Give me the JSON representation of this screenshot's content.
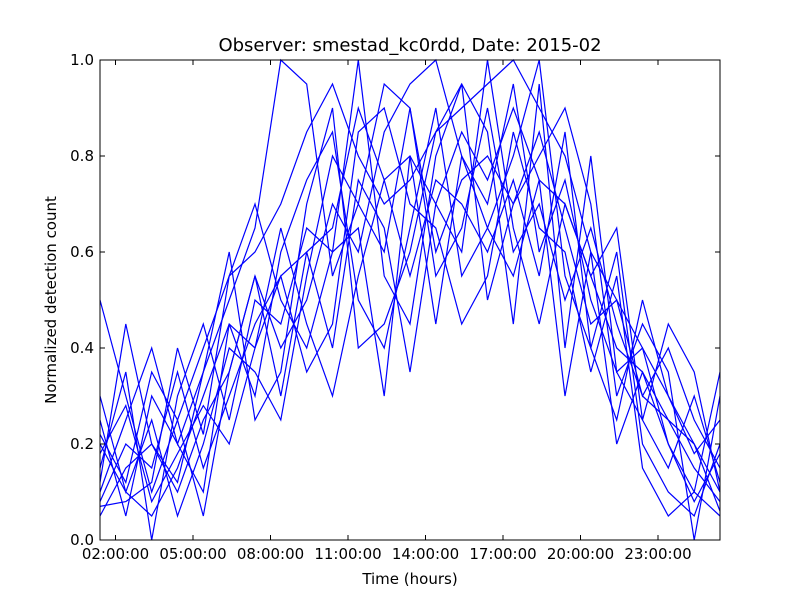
{
  "chart_data": {
    "type": "line",
    "title": "Observer: smestad_kc0rdd, Date: 2015-02",
    "xlabel": "Time (hours)",
    "ylabel": "Normalized detection count",
    "x_unit": "hour of day",
    "xlim": [
      1.4,
      25.4
    ],
    "ylim": [
      0.0,
      1.0
    ],
    "x_tick_values": [
      2,
      5,
      8,
      11,
      14,
      17,
      20,
      23
    ],
    "x_tick_labels": [
      "02:00:00",
      "05:00:00",
      "08:00:00",
      "11:00:00",
      "14:00:00",
      "17:00:00",
      "20:00:00",
      "23:00:00"
    ],
    "y_tick_values": [
      0.0,
      0.2,
      0.4,
      0.6,
      0.8,
      1.0
    ],
    "y_tick_labels": [
      "0.0",
      "0.2",
      "0.4",
      "0.6",
      "0.8",
      "1.0"
    ],
    "grid": false,
    "legend": "none",
    "line_color": "#0000ff",
    "x": [
      1.4,
      2.4,
      3.4,
      4.4,
      5.4,
      6.4,
      7.4,
      8.4,
      9.4,
      10.4,
      11.4,
      12.4,
      13.4,
      14.4,
      15.4,
      16.4,
      17.4,
      18.4,
      19.4,
      20.4,
      21.4,
      22.4,
      23.4,
      24.4,
      25.4
    ],
    "series": [
      {
        "values": [
          0.5,
          0.3,
          0.1,
          0.25,
          0.4,
          0.55,
          0.6,
          0.7,
          0.85,
          0.95,
          0.8,
          0.7,
          0.75,
          0.85,
          0.9,
          0.95,
          1.0,
          0.9,
          0.8,
          0.6,
          0.5,
          0.4,
          0.3,
          0.2,
          0.1
        ]
      },
      {
        "values": [
          0.2,
          0.1,
          0.05,
          0.15,
          0.3,
          0.45,
          0.4,
          0.55,
          0.6,
          0.65,
          0.9,
          0.75,
          0.8,
          0.7,
          0.85,
          0.75,
          0.9,
          0.75,
          0.7,
          0.55,
          0.4,
          0.35,
          0.2,
          0.1,
          0.05
        ]
      },
      {
        "values": [
          0.1,
          0.25,
          0.4,
          0.2,
          0.35,
          0.5,
          0.65,
          1.0,
          0.95,
          0.55,
          0.7,
          0.95,
          0.9,
          0.6,
          0.75,
          0.8,
          0.7,
          0.85,
          0.65,
          0.45,
          0.5,
          0.3,
          0.25,
          0.15,
          0.08
        ]
      },
      {
        "values": [
          0.05,
          0.15,
          0.2,
          0.1,
          0.25,
          0.35,
          0.55,
          0.4,
          0.5,
          0.7,
          0.6,
          0.85,
          0.95,
          1.0,
          0.8,
          0.7,
          0.95,
          0.6,
          0.75,
          0.5,
          0.35,
          0.25,
          0.15,
          0.3,
          0.12
        ]
      },
      {
        "values": [
          0.25,
          0.05,
          0.3,
          0.2,
          0.1,
          0.45,
          0.3,
          0.6,
          0.75,
          0.85,
          0.5,
          0.4,
          0.65,
          0.9,
          0.55,
          0.65,
          0.8,
          1.0,
          0.55,
          0.4,
          0.6,
          0.2,
          0.1,
          0.05,
          0.2
        ]
      },
      {
        "values": [
          0.15,
          0.35,
          0.0,
          0.3,
          0.45,
          0.25,
          0.5,
          0.45,
          0.65,
          0.6,
          1.0,
          0.55,
          0.45,
          0.8,
          0.95,
          0.5,
          0.7,
          0.8,
          0.9,
          0.7,
          0.3,
          0.45,
          0.35,
          0.0,
          0.3
        ]
      },
      {
        "values": [
          0.3,
          0.1,
          0.25,
          0.05,
          0.2,
          0.4,
          0.35,
          0.25,
          0.55,
          0.8,
          0.7,
          0.6,
          0.9,
          0.55,
          0.65,
          0.9,
          0.6,
          0.7,
          0.5,
          0.65,
          0.45,
          0.3,
          0.4,
          0.25,
          0.15
        ]
      },
      {
        "values": [
          0.08,
          0.2,
          0.15,
          0.35,
          0.15,
          0.3,
          0.45,
          0.55,
          0.35,
          0.45,
          0.85,
          0.9,
          0.7,
          0.65,
          0.45,
          0.55,
          0.85,
          0.65,
          0.6,
          0.35,
          0.55,
          0.15,
          0.05,
          0.1,
          0.35
        ]
      },
      {
        "values": [
          0.18,
          0.28,
          0.08,
          0.18,
          0.28,
          0.2,
          0.4,
          0.65,
          0.45,
          0.3,
          0.55,
          0.75,
          0.55,
          0.75,
          0.7,
          0.6,
          0.75,
          0.55,
          0.85,
          0.4,
          0.25,
          0.5,
          0.3,
          0.18,
          0.25
        ]
      },
      {
        "values": [
          0.12,
          0.45,
          0.2,
          0.12,
          0.35,
          0.6,
          0.25,
          0.35,
          0.7,
          0.9,
          0.4,
          0.45,
          0.6,
          0.85,
          0.95,
          0.85,
          0.45,
          0.95,
          0.4,
          0.8,
          0.35,
          0.4,
          0.2,
          0.08,
          0.18
        ]
      },
      {
        "values": [
          0.22,
          0.12,
          0.35,
          0.25,
          0.05,
          0.35,
          0.55,
          0.3,
          0.6,
          0.4,
          0.75,
          0.65,
          0.35,
          0.7,
          0.6,
          1.0,
          0.65,
          0.45,
          0.7,
          0.55,
          0.65,
          0.25,
          0.45,
          0.35,
          0.1
        ]
      },
      {
        "values": [
          0.07,
          0.08,
          0.12,
          0.4,
          0.22,
          0.55,
          0.7,
          0.5,
          0.4,
          0.6,
          0.65,
          0.3,
          0.8,
          0.45,
          0.8,
          0.65,
          0.55,
          0.75,
          0.3,
          0.6,
          0.2,
          0.35,
          0.25,
          0.2,
          0.06
        ]
      }
    ]
  }
}
